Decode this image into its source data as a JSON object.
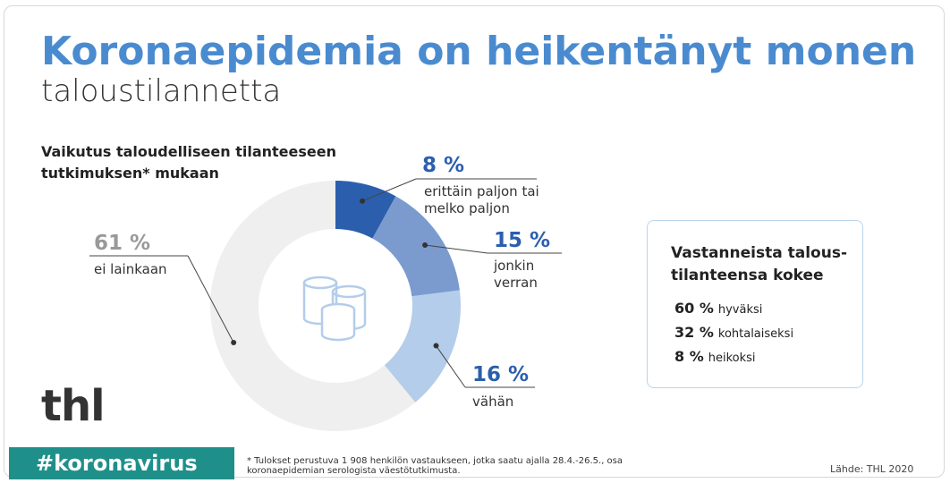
{
  "header": {
    "title": "Koronaepidemia on heikentänyt monen",
    "subtitle": "taloustilannetta"
  },
  "chart_data": {
    "type": "donut",
    "title": "Vaikutus taloudelliseen tilanteeseen tutkimuksen* mukaan",
    "categories": [
      "erittäin paljon tai melko paljon",
      "jonkin verran",
      "vähän",
      "ei lainkaan"
    ],
    "values": [
      8,
      15,
      16,
      61
    ],
    "value_labels": [
      "8 %",
      "15 %",
      "16 %",
      "61 %"
    ],
    "colors": [
      "#2b5fad",
      "#7b9bcf",
      "#b3cdea",
      "#efefef"
    ],
    "label_colors": [
      "#2b5fad",
      "#2b5fad",
      "#2b5fad",
      "#999999"
    ]
  },
  "infobox": {
    "title": "Vastanneista talous-tilanteensa kokee",
    "items": [
      {
        "value": "60 %",
        "text": "hyväksi"
      },
      {
        "value": "32 %",
        "text": "kohtalaiseksi"
      },
      {
        "value": "8 %",
        "text": "heikoksi"
      }
    ]
  },
  "footer": {
    "logo": "thl",
    "hashtag": "#koronavirus",
    "note": "* Tulokset perustuva 1 908 henkilön vastaukseen, jotka saatu ajalla 28.4.-26.5., osa koronaepidemian serologista väestötutkimusta.",
    "source": "Lähde: THL 2020"
  }
}
